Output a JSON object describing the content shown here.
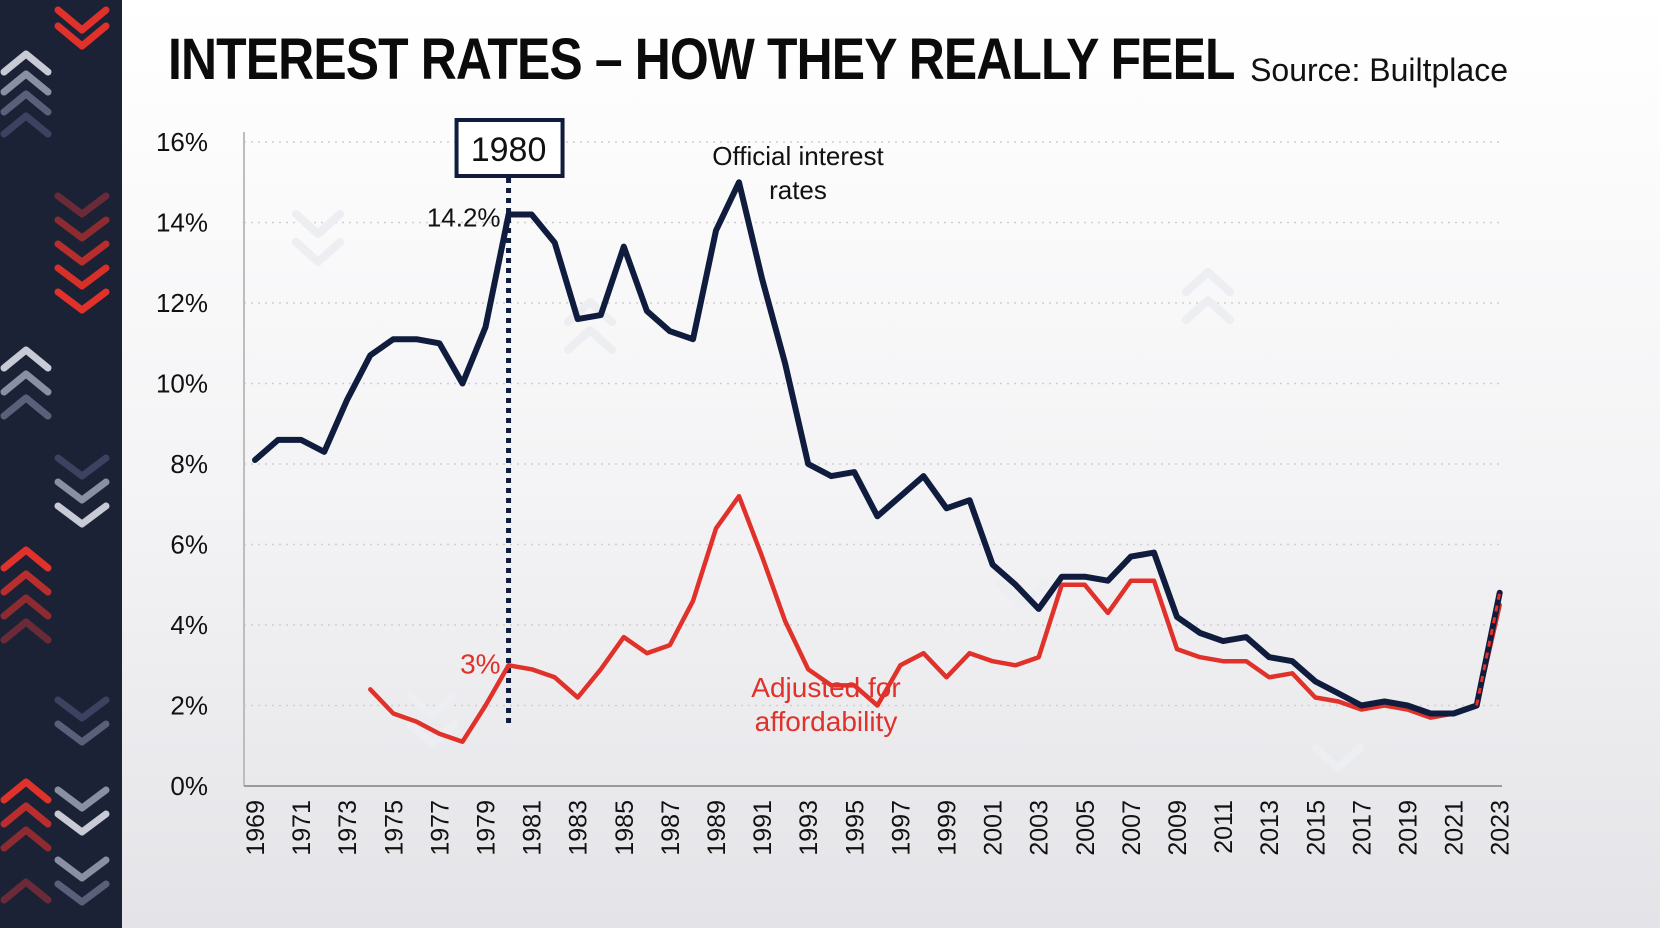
{
  "title": "INTEREST RATES – HOW THEY REALLY FEEL",
  "source": "Source: Builtplace",
  "colors": {
    "official": "#0f1c3d",
    "adjusted": "#e0312a",
    "sidebar": "#1b2236"
  },
  "chart_data": {
    "type": "line",
    "title": "INTEREST RATES – HOW THEY REALLY FEEL",
    "x": [
      1969,
      1970,
      1971,
      1972,
      1973,
      1974,
      1975,
      1976,
      1977,
      1978,
      1979,
      1980,
      1981,
      1982,
      1983,
      1984,
      1985,
      1986,
      1987,
      1988,
      1989,
      1990,
      1991,
      1992,
      1993,
      1994,
      1995,
      1996,
      1997,
      1998,
      1999,
      2000,
      2001,
      2002,
      2003,
      2004,
      2005,
      2006,
      2007,
      2008,
      2009,
      2010,
      2011,
      2012,
      2013,
      2014,
      2015,
      2016,
      2017,
      2018,
      2019,
      2020,
      2021,
      2022,
      2023
    ],
    "x_tick_labels": [
      "1969",
      "1971",
      "1973",
      "1975",
      "1977",
      "1979",
      "1981",
      "1983",
      "1985",
      "1987",
      "1989",
      "1991",
      "1993",
      "1995",
      "1997",
      "1999",
      "2001",
      "2003",
      "2005",
      "2007",
      "2009",
      "2011",
      "2013",
      "2015",
      "2017",
      "2019",
      "2021",
      "2023"
    ],
    "y_tick_labels": [
      "0%",
      "2%",
      "4%",
      "6%",
      "8%",
      "10%",
      "12%",
      "14%",
      "16%"
    ],
    "ylim": [
      0,
      16
    ],
    "grid": "horizontal dotted",
    "series": [
      {
        "name": "Official interest rates",
        "color": "#0f1c3d",
        "values": [
          8.1,
          8.6,
          8.6,
          8.3,
          9.6,
          10.7,
          11.1,
          11.1,
          11.0,
          10.0,
          11.4,
          14.2,
          14.2,
          13.5,
          11.6,
          11.7,
          13.4,
          11.8,
          11.3,
          11.1,
          13.8,
          15.0,
          12.6,
          10.5,
          8.0,
          7.7,
          7.8,
          6.7,
          7.2,
          7.7,
          6.9,
          7.1,
          5.5,
          5.0,
          4.4,
          5.2,
          5.2,
          5.1,
          5.7,
          5.8,
          4.2,
          3.8,
          3.6,
          3.7,
          3.2,
          3.1,
          2.6,
          2.3,
          2.0,
          2.1,
          2.0,
          1.8,
          1.8,
          2.0,
          4.8
        ]
      },
      {
        "name": "Adjusted for affordability",
        "color": "#e0312a",
        "values": [
          null,
          null,
          null,
          null,
          null,
          2.4,
          1.8,
          1.6,
          1.3,
          1.1,
          2.0,
          3.0,
          2.9,
          2.7,
          2.2,
          2.9,
          3.7,
          3.3,
          3.5,
          4.6,
          6.4,
          7.2,
          5.7,
          4.1,
          2.9,
          2.5,
          2.5,
          2.0,
          3.0,
          3.3,
          2.7,
          3.3,
          3.1,
          3.0,
          3.2,
          5.0,
          5.0,
          4.3,
          5.1,
          5.1,
          3.4,
          3.2,
          3.1,
          3.1,
          2.7,
          2.8,
          2.2,
          2.1,
          1.9,
          2.0,
          1.9,
          1.7,
          1.8,
          2.0,
          4.5
        ]
      }
    ],
    "annotations": {
      "highlight_year": "1980",
      "official_1980_label": "14.2%",
      "adjusted_1980_label": "3%",
      "official_line_1": "Official interest",
      "official_line_2": "rates",
      "adjusted_line_1": "Adjusted for",
      "adjusted_line_2": "affordability"
    }
  }
}
